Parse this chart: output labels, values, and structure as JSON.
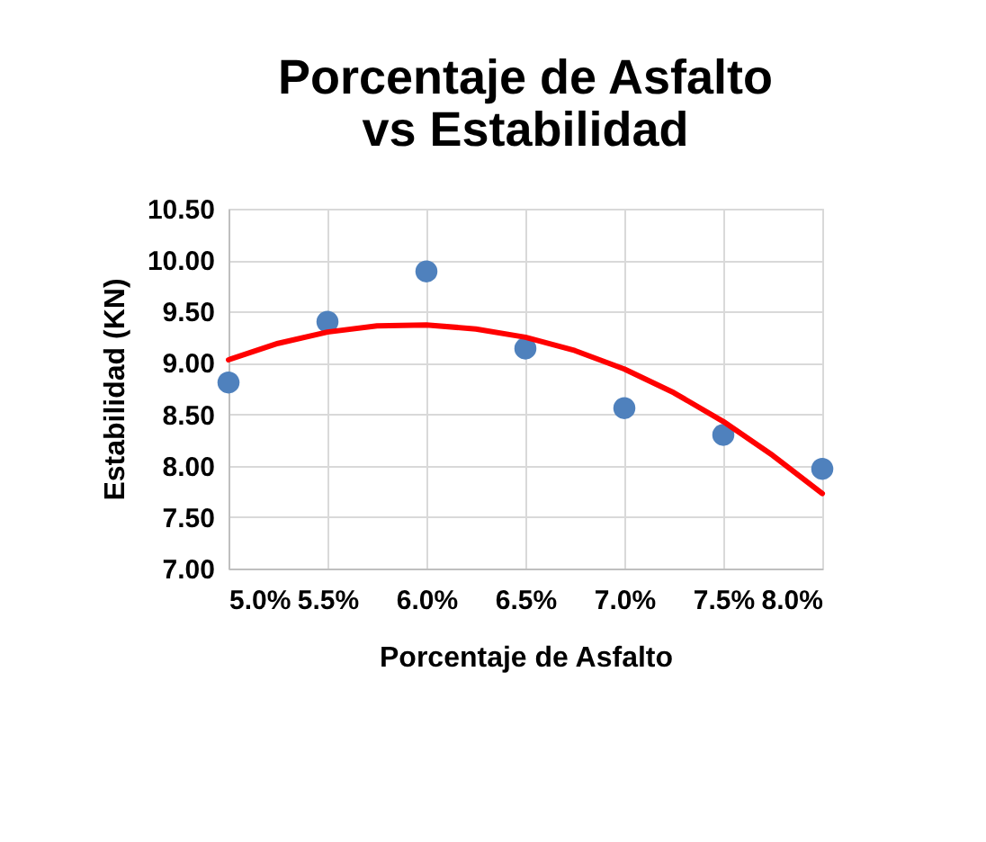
{
  "chart_data": {
    "type": "scatter",
    "title": "Porcentaje de Asfalto vs Estabilidad",
    "xlabel": "Porcentaje de Asfalto",
    "ylabel": "Estabilidad (KN)",
    "series": [
      {
        "color": "#4f81bd",
        "marker": "circle",
        "x": [
          5.0,
          5.5,
          6.0,
          6.5,
          7.0,
          7.5,
          8.0
        ],
        "values": [
          8.81,
          9.4,
          9.89,
          9.14,
          8.56,
          8.3,
          7.97
        ]
      },
      {
        "type": "line",
        "color": "#ff0000",
        "line_style": "solid",
        "marker": "none",
        "x": [
          5.0,
          5.25,
          5.5,
          5.75,
          6.0,
          6.25,
          6.5,
          6.75,
          7.0,
          7.25,
          7.5,
          7.75,
          8.0
        ],
        "values": [
          9.03,
          9.19,
          9.3,
          9.36,
          9.37,
          9.33,
          9.25,
          9.12,
          8.94,
          8.71,
          8.43,
          8.1,
          7.73
        ]
      }
    ],
    "xlim": [
      5.0,
      8.0
    ],
    "xticks": [
      {
        "value": 5.0,
        "label": "5.0%"
      },
      {
        "value": 5.5,
        "label": "5.5%"
      },
      {
        "value": 6.0,
        "label": "6.0%"
      },
      {
        "value": 6.5,
        "label": "6.5%"
      },
      {
        "value": 7.0,
        "label": "7.0%"
      },
      {
        "value": 7.5,
        "label": "7.5%"
      },
      {
        "value": 8.0,
        "label": "8.0%"
      }
    ],
    "ylim": [
      7.0,
      10.5
    ],
    "yticks": [
      {
        "value": 7.0,
        "label": "7.00"
      },
      {
        "value": 7.5,
        "label": "7.50"
      },
      {
        "value": 8.0,
        "label": "8.00"
      },
      {
        "value": 8.5,
        "label": "8.50"
      },
      {
        "value": 9.0,
        "label": "9.00"
      },
      {
        "value": 9.5,
        "label": "9.50"
      },
      {
        "value": 10.0,
        "label": "10.00"
      },
      {
        "value": 10.5,
        "label": "10.50"
      }
    ],
    "grid": true
  }
}
